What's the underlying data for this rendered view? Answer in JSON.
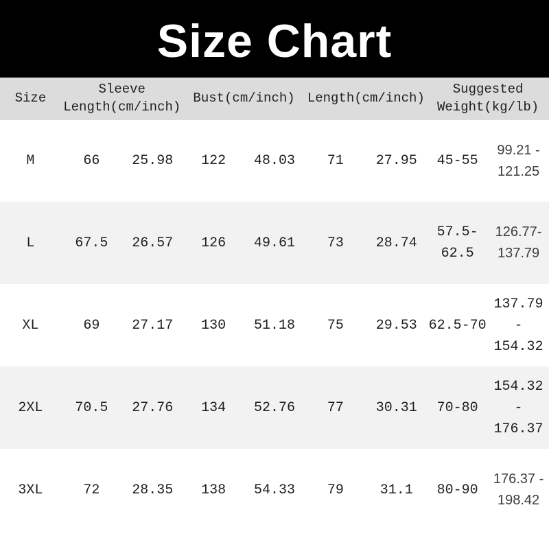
{
  "title": "Size Chart",
  "colors": {
    "banner_bg": "#000000",
    "banner_text": "#ffffff",
    "header_bg": "#dcdcdc",
    "stripe_bg": "#f2f2f2",
    "cell_text": "#1f1f1f",
    "cell_text_alt": "#3d3d3d"
  },
  "table": {
    "headers": [
      {
        "lines": [
          "Size"
        ]
      },
      {
        "lines": [
          "Sleeve",
          "Length(cm/inch)"
        ]
      },
      {
        "lines": [
          "Bust(cm/inch)"
        ]
      },
      {
        "lines": [
          "Length(cm/inch)"
        ]
      },
      {
        "lines": [
          "Suggested",
          "Weight(kg/lb)"
        ]
      }
    ],
    "rows": [
      {
        "size": "M",
        "sleeve_cm": "66",
        "sleeve_in": "25.98",
        "bust_cm": "122",
        "bust_in": "48.03",
        "length_cm": "71",
        "length_in": "27.95",
        "weight_kg": "45-55",
        "weight_lb": "99.21 - 121.25"
      },
      {
        "size": "L",
        "sleeve_cm": "67.5",
        "sleeve_in": "26.57",
        "bust_cm": "126",
        "bust_in": "49.61",
        "length_cm": "73",
        "length_in": "28.74",
        "weight_kg": "57.5-62.5",
        "weight_lb": "126.77-137.79"
      },
      {
        "size": "XL",
        "sleeve_cm": "69",
        "sleeve_in": "27.17",
        "bust_cm": "130",
        "bust_in": "51.18",
        "length_cm": "75",
        "length_in": "29.53",
        "weight_kg": "62.5-70",
        "weight_lb": "137.79 - 154.32"
      },
      {
        "size": "2XL",
        "sleeve_cm": "70.5",
        "sleeve_in": "27.76",
        "bust_cm": "134",
        "bust_in": "52.76",
        "length_cm": "77",
        "length_in": "30.31",
        "weight_kg": "70-80",
        "weight_lb": "154.32 - 176.37"
      },
      {
        "size": "3XL",
        "sleeve_cm": "72",
        "sleeve_in": "28.35",
        "bust_cm": "138",
        "bust_in": "54.33",
        "length_cm": "79",
        "length_in": "31.1",
        "weight_kg": "80-90",
        "weight_lb": "176.37 - 198.42"
      }
    ]
  },
  "chart_data": {
    "type": "table",
    "title": "Size Chart",
    "columns": [
      "Size",
      "Sleeve Length (cm)",
      "Sleeve Length (inch)",
      "Bust (cm)",
      "Bust (inch)",
      "Length (cm)",
      "Length (inch)",
      "Suggested Weight (kg)",
      "Suggested Weight (lb)"
    ],
    "rows": [
      [
        "M",
        66,
        25.98,
        122,
        48.03,
        71,
        27.95,
        "45-55",
        "99.21-121.25"
      ],
      [
        "L",
        67.5,
        26.57,
        126,
        49.61,
        73,
        28.74,
        "57.5-62.5",
        "126.77-137.79"
      ],
      [
        "XL",
        69,
        27.17,
        130,
        51.18,
        75,
        29.53,
        "62.5-70",
        "137.79-154.32"
      ],
      [
        "2XL",
        70.5,
        27.76,
        134,
        52.76,
        77,
        30.31,
        "70-80",
        "154.32-176.37"
      ],
      [
        "3XL",
        72,
        28.35,
        138,
        54.33,
        79,
        31.1,
        "80-90",
        "176.37-198.42"
      ]
    ]
  }
}
